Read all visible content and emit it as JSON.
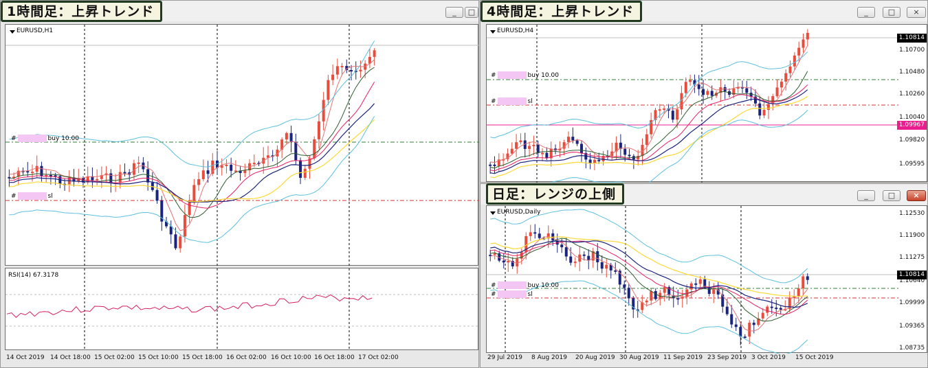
{
  "windows": {
    "h1": {
      "tag": "1時間足：上昇トレンド",
      "symbol": "EURUSD,H1",
      "rsi_label": "RSI(14) 67.3178",
      "buy_level": "buy 10.00",
      "sl_level": "sl",
      "time_labels": [
        "14 Oct 2019",
        "14 Oct 18:00",
        "15 Oct 02:00",
        "15 Oct 10:00",
        "15 Oct 18:00",
        "16 Oct 02:00",
        "16 Oct 10:00",
        "16 Oct 18:00",
        "17 Oct 02:00"
      ]
    },
    "h4": {
      "tag": "4時間足：上昇トレンド",
      "symbol": "EURUSD,H4",
      "buy_level": "buy 10.00",
      "sl_level": "sl",
      "current_price": "1.10814",
      "level_price": "1.09967",
      "price_labels": [
        "1.10700",
        "1.10480",
        "1.10260",
        "1.10040",
        "1.09820",
        "1.09595"
      ]
    },
    "daily": {
      "tag": "日足：レンジの上側",
      "symbol": "EURUSD,Daily",
      "buy_level": "buy 10.00",
      "sl_level": "sl",
      "current_price": "1.10814",
      "price_labels": [
        "1.12530",
        "1.11900",
        "1.11275",
        "1.10640",
        "1.09999",
        "1.09365",
        "1.08735"
      ],
      "time_labels": [
        "29 Jul 2019",
        "8 Aug 2019",
        "20 Aug 2019",
        "30 Aug 2019",
        "11 Sep 2019",
        "23 Sep 2019",
        "3 Oct 2019",
        "15 Oct 2019"
      ]
    }
  },
  "window_buttons": {
    "minimize": "_",
    "maximize": "□",
    "close": "×"
  },
  "icons": {
    "symbol_marker": "down-triangle-icon",
    "minimize": "minimize-icon",
    "maximize": "maximize-icon",
    "close": "close-icon"
  },
  "colors": {
    "bull": "#e74c3c",
    "bear": "#1a237e",
    "buy_line": "#2e7d32",
    "sl_line": "#d32f2f",
    "bollinger": "#5bc0de",
    "rsi": "#d81b60",
    "price_pink": "#e91e8c"
  }
}
